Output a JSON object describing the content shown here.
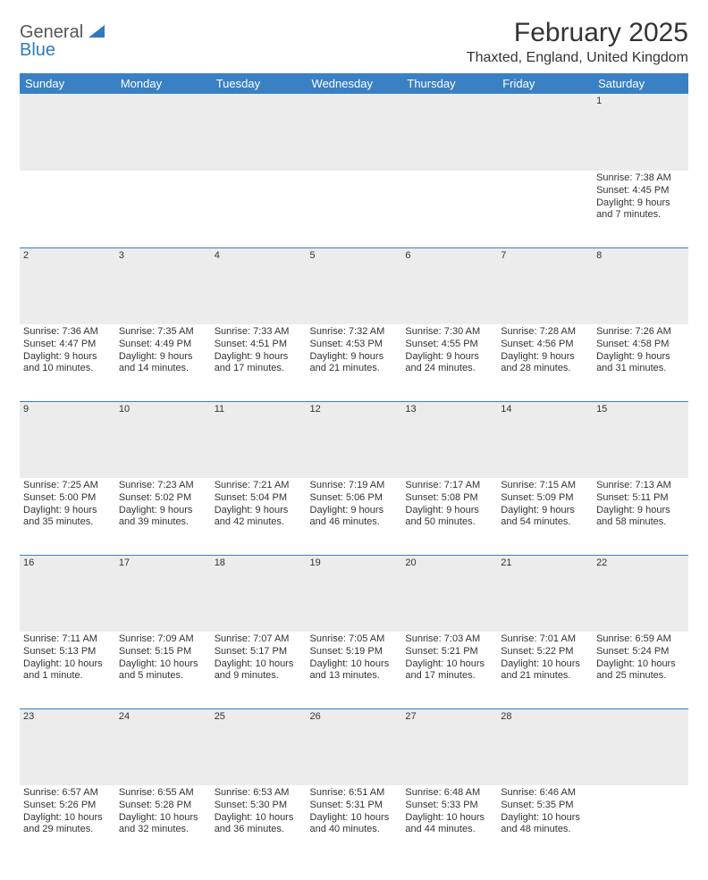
{
  "logo": {
    "word1": "General",
    "word2": "Blue"
  },
  "title": "February 2025",
  "location": "Thaxted, England, United Kingdom",
  "dayHeaders": [
    "Sunday",
    "Monday",
    "Tuesday",
    "Wednesday",
    "Thursday",
    "Friday",
    "Saturday"
  ],
  "colors": {
    "headerBg": "#3a80c4",
    "rowBg": "#ececec",
    "text": "#333333",
    "logoBlue": "#2f79c2"
  },
  "weeks": [
    {
      "nums": [
        "",
        "",
        "",
        "",
        "",
        "",
        "1"
      ],
      "details": [
        [],
        [],
        [],
        [],
        [],
        [],
        [
          "Sunrise: 7:38 AM",
          "Sunset: 4:45 PM",
          "Daylight: 9 hours and 7 minutes."
        ]
      ]
    },
    {
      "nums": [
        "2",
        "3",
        "4",
        "5",
        "6",
        "7",
        "8"
      ],
      "details": [
        [
          "Sunrise: 7:36 AM",
          "Sunset: 4:47 PM",
          "Daylight: 9 hours and 10 minutes."
        ],
        [
          "Sunrise: 7:35 AM",
          "Sunset: 4:49 PM",
          "Daylight: 9 hours and 14 minutes."
        ],
        [
          "Sunrise: 7:33 AM",
          "Sunset: 4:51 PM",
          "Daylight: 9 hours and 17 minutes."
        ],
        [
          "Sunrise: 7:32 AM",
          "Sunset: 4:53 PM",
          "Daylight: 9 hours and 21 minutes."
        ],
        [
          "Sunrise: 7:30 AM",
          "Sunset: 4:55 PM",
          "Daylight: 9 hours and 24 minutes."
        ],
        [
          "Sunrise: 7:28 AM",
          "Sunset: 4:56 PM",
          "Daylight: 9 hours and 28 minutes."
        ],
        [
          "Sunrise: 7:26 AM",
          "Sunset: 4:58 PM",
          "Daylight: 9 hours and 31 minutes."
        ]
      ]
    },
    {
      "nums": [
        "9",
        "10",
        "11",
        "12",
        "13",
        "14",
        "15"
      ],
      "details": [
        [
          "Sunrise: 7:25 AM",
          "Sunset: 5:00 PM",
          "Daylight: 9 hours and 35 minutes."
        ],
        [
          "Sunrise: 7:23 AM",
          "Sunset: 5:02 PM",
          "Daylight: 9 hours and 39 minutes."
        ],
        [
          "Sunrise: 7:21 AM",
          "Sunset: 5:04 PM",
          "Daylight: 9 hours and 42 minutes."
        ],
        [
          "Sunrise: 7:19 AM",
          "Sunset: 5:06 PM",
          "Daylight: 9 hours and 46 minutes."
        ],
        [
          "Sunrise: 7:17 AM",
          "Sunset: 5:08 PM",
          "Daylight: 9 hours and 50 minutes."
        ],
        [
          "Sunrise: 7:15 AM",
          "Sunset: 5:09 PM",
          "Daylight: 9 hours and 54 minutes."
        ],
        [
          "Sunrise: 7:13 AM",
          "Sunset: 5:11 PM",
          "Daylight: 9 hours and 58 minutes."
        ]
      ]
    },
    {
      "nums": [
        "16",
        "17",
        "18",
        "19",
        "20",
        "21",
        "22"
      ],
      "details": [
        [
          "Sunrise: 7:11 AM",
          "Sunset: 5:13 PM",
          "Daylight: 10 hours and 1 minute."
        ],
        [
          "Sunrise: 7:09 AM",
          "Sunset: 5:15 PM",
          "Daylight: 10 hours and 5 minutes."
        ],
        [
          "Sunrise: 7:07 AM",
          "Sunset: 5:17 PM",
          "Daylight: 10 hours and 9 minutes."
        ],
        [
          "Sunrise: 7:05 AM",
          "Sunset: 5:19 PM",
          "Daylight: 10 hours and 13 minutes."
        ],
        [
          "Sunrise: 7:03 AM",
          "Sunset: 5:21 PM",
          "Daylight: 10 hours and 17 minutes."
        ],
        [
          "Sunrise: 7:01 AM",
          "Sunset: 5:22 PM",
          "Daylight: 10 hours and 21 minutes."
        ],
        [
          "Sunrise: 6:59 AM",
          "Sunset: 5:24 PM",
          "Daylight: 10 hours and 25 minutes."
        ]
      ]
    },
    {
      "nums": [
        "23",
        "24",
        "25",
        "26",
        "27",
        "28",
        ""
      ],
      "details": [
        [
          "Sunrise: 6:57 AM",
          "Sunset: 5:26 PM",
          "Daylight: 10 hours and 29 minutes."
        ],
        [
          "Sunrise: 6:55 AM",
          "Sunset: 5:28 PM",
          "Daylight: 10 hours and 32 minutes."
        ],
        [
          "Sunrise: 6:53 AM",
          "Sunset: 5:30 PM",
          "Daylight: 10 hours and 36 minutes."
        ],
        [
          "Sunrise: 6:51 AM",
          "Sunset: 5:31 PM",
          "Daylight: 10 hours and 40 minutes."
        ],
        [
          "Sunrise: 6:48 AM",
          "Sunset: 5:33 PM",
          "Daylight: 10 hours and 44 minutes."
        ],
        [
          "Sunrise: 6:46 AM",
          "Sunset: 5:35 PM",
          "Daylight: 10 hours and 48 minutes."
        ],
        []
      ]
    }
  ]
}
